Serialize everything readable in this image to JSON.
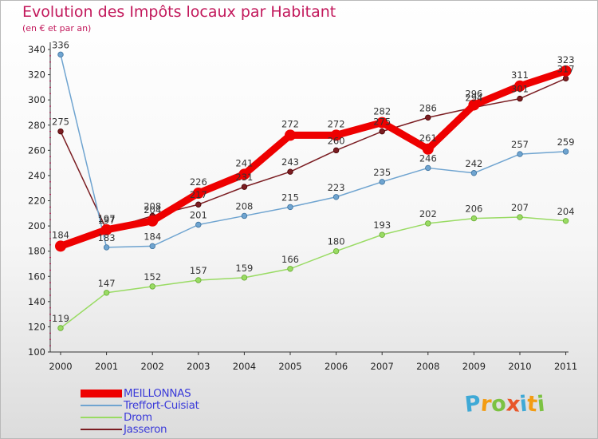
{
  "title": "Evolution des Impôts locaux par Habitant",
  "subtitle": "(en € et par an)",
  "logo": {
    "letters": [
      {
        "ch": "P",
        "color": "#3fa9d6"
      },
      {
        "ch": "r",
        "color": "#f39c12"
      },
      {
        "ch": "o",
        "color": "#7cc242"
      },
      {
        "ch": "x",
        "color": "#e8562a"
      },
      {
        "ch": "i",
        "color": "#3fa9d6"
      },
      {
        "ch": "t",
        "color": "#f39c12"
      },
      {
        "ch": "i",
        "color": "#7cc242"
      }
    ]
  },
  "chart_data": {
    "type": "line",
    "title": "Evolution des Impôts locaux par Habitant",
    "subtitle": "(en € et par an)",
    "xlabel": "",
    "ylabel": "",
    "x": [
      "2000",
      "2001",
      "2002",
      "2003",
      "2004",
      "2005",
      "2006",
      "2007",
      "2008",
      "2009",
      "2010",
      "2011"
    ],
    "ylim": [
      100,
      340
    ],
    "yticks": [
      100,
      120,
      140,
      160,
      180,
      200,
      220,
      240,
      260,
      280,
      300,
      320,
      340
    ],
    "grid": false,
    "legend_position": "bottom-left",
    "series": [
      {
        "name": "Jasseron",
        "color": "#7b1d22",
        "labels": [
          "275",
          "197",
          "208",
          "217",
          "231",
          "243",
          "260",
          "275",
          "286",
          "294",
          "301",
          "317"
        ],
        "values": [
          275,
          197,
          208,
          217,
          231,
          243,
          260,
          275,
          286,
          294,
          301,
          317
        ]
      },
      {
        "name": "Drom",
        "color": "#99db63",
        "labels": [
          "119",
          "147",
          "152",
          "157",
          "159",
          "166",
          "180",
          "193",
          "202",
          "206",
          "207",
          "204"
        ],
        "values": [
          119,
          147,
          152,
          157,
          159,
          166,
          180,
          193,
          202,
          206,
          207,
          204
        ]
      },
      {
        "name": "Treffort-Cuisiat",
        "color": "#6fa4d0",
        "labels": [
          "336",
          "183",
          "184",
          "201",
          "208",
          "215",
          "223",
          "235",
          "246",
          "242",
          "257",
          "259"
        ],
        "values": [
          336,
          183,
          184,
          201,
          208,
          215,
          223,
          235,
          246,
          242,
          257,
          259
        ]
      },
      {
        "name": "MEILLONNAS",
        "color": "#ee0000",
        "labels": [
          "184",
          "197",
          "204",
          "226",
          "241",
          "272",
          "272",
          "282",
          "261",
          "296",
          "311",
          "323"
        ],
        "values": [
          184,
          197,
          204,
          226,
          241,
          272,
          272,
          282,
          261,
          296,
          311,
          323
        ]
      }
    ]
  },
  "legend": [
    {
      "name": "MEILLONNAS",
      "color": "#ee0000",
      "text_color": "#3b3bd9",
      "weight": 10
    },
    {
      "name": "Treffort-Cuisiat",
      "color": "#6fa4d0",
      "text_color": "#3b3bd9",
      "weight": 2
    },
    {
      "name": "Drom",
      "color": "#99db63",
      "text_color": "#3b3bd9",
      "weight": 2
    },
    {
      "name": "Jasseron",
      "color": "#7b1d22",
      "text_color": "#3b3bd9",
      "weight": 2
    }
  ]
}
